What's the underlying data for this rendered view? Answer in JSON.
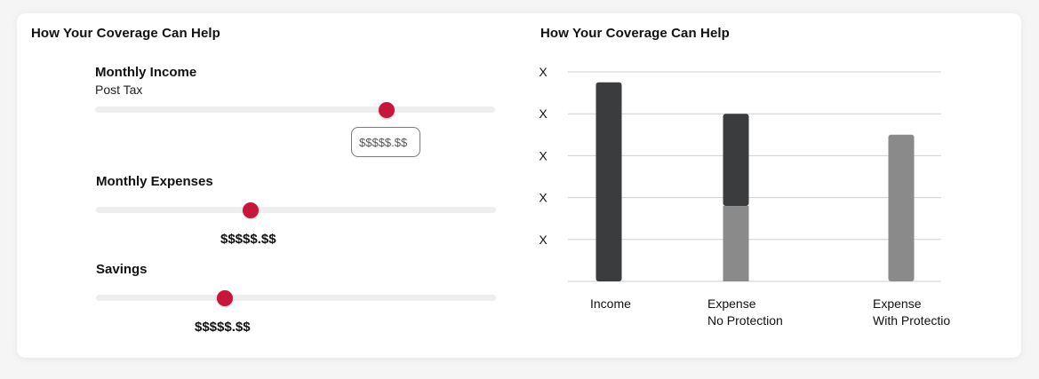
{
  "left_panel": {
    "title": "How Your Coverage Can Help",
    "income": {
      "label": "Monthly Income",
      "sublabel": "Post Tax",
      "slider_fraction": 0.728,
      "input_value": "$$$$$.$$"
    },
    "expenses": {
      "label": "Monthly Expenses",
      "slider_fraction": 0.387,
      "value": "$$$$$.$$"
    },
    "savings": {
      "label": "Savings",
      "slider_fraction": 0.322,
      "value": "$$$$$.$$"
    }
  },
  "right_panel": {
    "title": "How Your Coverage Can Help"
  },
  "colors": {
    "accent": "#c8153b",
    "bar_dark": "#3a3c3e",
    "bar_light": "#8a8a8a",
    "grid": "#cfcfcf"
  },
  "chart_data": {
    "type": "bar",
    "title": "How Your Coverage Can Help",
    "categories": [
      "Income",
      "Expense\nNo Protection",
      "Expense\nWith Protection"
    ],
    "y_tick_labels": [
      "X",
      "X",
      "X",
      "X",
      "X"
    ],
    "ylim": [
      0,
      5
    ],
    "grid": true,
    "series": [
      {
        "values": [
          4.75,
          0,
          0
        ],
        "color": "#3a3c3e"
      },
      {
        "values": [
          0,
          1.8,
          3.5
        ],
        "color": "#8a8a8a"
      },
      {
        "values": [
          0,
          2.2,
          0
        ],
        "color": "#3a3c3e"
      }
    ],
    "stacked": true
  }
}
